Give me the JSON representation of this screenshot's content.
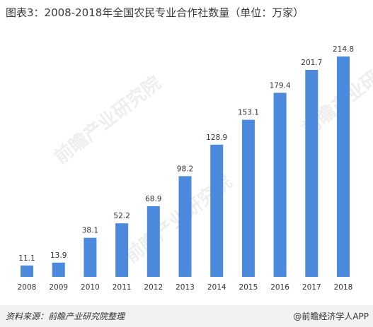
{
  "title": "图表3：2008-2018年全国农民专业合作社数量（单位：万家）",
  "watermark": "前瞻产业研究院",
  "source": "资料来源：前瞻产业研究院整理",
  "brand": "@前瞻经济学人APP",
  "colors": {
    "bar": "#4a89dc",
    "text": "#333333",
    "footer_bg": "#f2f2f2"
  },
  "chart_data": {
    "type": "bar",
    "title": "图表3：2008-2018年全国农民专业合作社数量（单位：万家）",
    "xlabel": "",
    "ylabel": "",
    "categories": [
      "2008",
      "2009",
      "2010",
      "2011",
      "2012",
      "2013",
      "2014",
      "2015",
      "2016",
      "2017",
      "2018"
    ],
    "values": [
      11.1,
      13.9,
      38.1,
      52.2,
      68.9,
      98.2,
      128.9,
      153.1,
      179.4,
      201.7,
      214.8
    ],
    "value_labels": [
      "11.1",
      "13.9",
      "38.1",
      "52.2",
      "68.9",
      "98.2",
      "128.9",
      "153.1",
      "179.4",
      "201.7",
      "214.8"
    ],
    "ylim": [
      0,
      214.8
    ],
    "grid": false,
    "legend": "none"
  }
}
